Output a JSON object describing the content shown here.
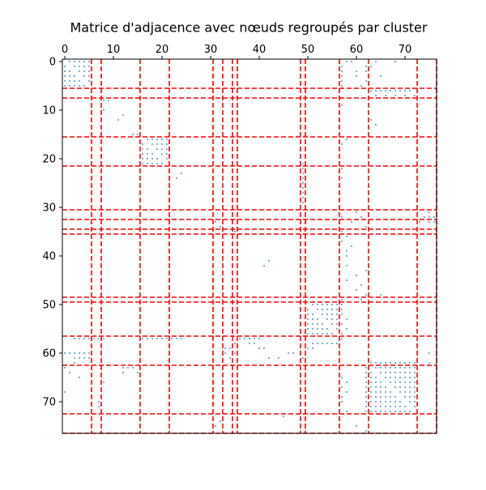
{
  "chart_data": {
    "type": "heatmap",
    "title": "Matrice d'adjacence avec nœuds regroupés par cluster",
    "n_nodes": 77,
    "x_range": [
      -0.5,
      76.5
    ],
    "y_range": [
      -0.5,
      76.5
    ],
    "x_axis_position": "top",
    "y_axis_inverted": true,
    "x_ticks": [
      0,
      10,
      20,
      30,
      40,
      50,
      60,
      70
    ],
    "y_ticks": [
      0,
      10,
      20,
      30,
      40,
      50,
      60,
      70
    ],
    "grid": false,
    "marker_color": "#1f77b4",
    "boundary_color": "#ff0000",
    "boundary_style": "dashed",
    "cluster_boundaries": [
      5.5,
      7.5,
      15.5,
      21.5,
      30.5,
      32.5,
      34.5,
      35.5,
      48.5,
      49.5,
      56.5,
      62.5,
      72.5,
      76.5
    ],
    "dense_blocks": [
      {
        "rows": [
          0,
          5
        ],
        "cols": [
          0,
          5
        ]
      },
      {
        "rows": [
          16,
          21
        ],
        "cols": [
          16,
          21
        ]
      },
      {
        "rows": [
          50,
          56
        ],
        "cols": [
          50,
          56
        ]
      },
      {
        "rows": [
          62,
          72
        ],
        "cols": [
          62,
          72
        ]
      }
    ],
    "edges": [
      [
        0,
        58
      ],
      [
        0,
        59
      ],
      [
        0,
        64
      ],
      [
        0,
        68
      ],
      [
        1,
        57
      ],
      [
        1,
        62
      ],
      [
        1,
        63
      ],
      [
        2,
        57
      ],
      [
        2,
        60
      ],
      [
        2,
        62
      ],
      [
        3,
        57
      ],
      [
        3,
        60
      ],
      [
        3,
        65
      ],
      [
        4,
        57
      ],
      [
        4,
        62
      ],
      [
        5,
        57
      ],
      [
        5,
        61
      ],
      [
        6,
        63
      ],
      [
        6,
        64
      ],
      [
        6,
        65
      ],
      [
        6,
        66
      ],
      [
        6,
        67
      ],
      [
        6,
        68
      ],
      [
        6,
        69
      ],
      [
        6,
        70
      ],
      [
        6,
        71
      ],
      [
        7,
        64
      ],
      [
        7,
        66
      ],
      [
        7,
        68
      ],
      [
        7,
        70
      ],
      [
        7,
        72
      ],
      [
        8,
        8
      ],
      [
        8,
        9
      ],
      [
        9,
        57
      ],
      [
        10,
        8
      ],
      [
        12,
        11
      ],
      [
        11,
        12
      ],
      [
        12,
        63
      ],
      [
        13,
        64
      ],
      [
        15,
        14
      ],
      [
        15,
        15
      ],
      [
        16,
        58
      ],
      [
        17,
        57
      ],
      [
        22,
        57
      ],
      [
        23,
        24
      ],
      [
        24,
        23
      ],
      [
        24,
        57
      ],
      [
        21,
        49
      ],
      [
        22,
        49
      ],
      [
        23,
        49
      ],
      [
        24,
        49
      ],
      [
        25,
        49
      ],
      [
        26,
        49
      ],
      [
        27,
        49
      ],
      [
        28,
        49
      ],
      [
        29,
        49
      ],
      [
        31,
        60
      ],
      [
        32,
        57
      ],
      [
        32,
        61
      ],
      [
        33,
        31
      ],
      [
        33,
        59
      ],
      [
        33,
        73
      ],
      [
        33,
        75
      ],
      [
        34,
        32
      ],
      [
        34,
        62
      ],
      [
        35,
        35
      ],
      [
        35,
        57
      ],
      [
        36,
        58
      ],
      [
        37,
        57
      ],
      [
        38,
        59
      ],
      [
        39,
        58
      ],
      [
        40,
        58
      ],
      [
        41,
        42
      ],
      [
        42,
        41
      ],
      [
        42,
        58
      ],
      [
        43,
        62
      ],
      [
        44,
        60
      ],
      [
        45,
        58
      ],
      [
        46,
        61
      ],
      [
        47,
        60
      ],
      [
        48,
        62
      ],
      [
        48,
        65
      ],
      [
        49,
        57
      ],
      [
        49,
        61
      ],
      [
        50,
        57
      ],
      [
        51,
        57
      ],
      [
        52,
        57
      ],
      [
        53,
        58
      ],
      [
        54,
        57
      ],
      [
        55,
        58
      ],
      [
        56,
        57
      ],
      [
        57,
        57
      ],
      [
        58,
        51
      ],
      [
        58,
        52
      ],
      [
        58,
        53
      ],
      [
        58,
        54
      ],
      [
        58,
        55
      ],
      [
        58,
        56
      ],
      [
        60,
        0
      ],
      [
        60,
        1
      ],
      [
        60,
        2
      ],
      [
        60,
        3
      ],
      [
        60,
        4
      ],
      [
        60,
        5
      ],
      [
        61,
        2
      ],
      [
        61,
        3
      ],
      [
        61,
        4
      ],
      [
        61,
        5
      ],
      [
        62,
        2
      ],
      [
        63,
        0
      ],
      [
        64,
        1
      ],
      [
        65,
        3
      ],
      [
        66,
        8
      ],
      [
        68,
        0
      ],
      [
        70,
        7
      ],
      [
        71,
        7
      ],
      [
        57,
        2
      ],
      [
        57,
        3
      ],
      [
        57,
        4
      ],
      [
        57,
        5
      ],
      [
        57,
        6
      ],
      [
        57,
        7
      ],
      [
        57,
        8
      ],
      [
        57,
        16
      ],
      [
        57,
        17
      ],
      [
        57,
        18
      ],
      [
        57,
        19
      ],
      [
        57,
        20
      ],
      [
        57,
        21
      ],
      [
        57,
        22
      ],
      [
        57,
        23
      ],
      [
        57,
        24
      ],
      [
        57,
        36
      ],
      [
        57,
        37
      ],
      [
        57,
        38
      ],
      [
        57,
        39
      ],
      [
        57,
        40
      ],
      [
        58,
        35
      ],
      [
        58,
        38
      ],
      [
        58,
        39
      ],
      [
        59,
        33
      ],
      [
        59,
        40
      ],
      [
        59,
        41
      ],
      [
        61,
        42
      ],
      [
        61,
        44
      ],
      [
        60,
        46
      ],
      [
        60,
        47
      ],
      [
        61,
        49
      ],
      [
        59,
        50
      ],
      [
        59,
        51
      ],
      [
        63,
        12
      ],
      [
        63,
        13
      ],
      [
        63,
        14
      ],
      [
        64,
        12
      ],
      [
        64,
        15
      ],
      [
        59,
        34
      ],
      [
        60,
        33
      ],
      [
        60,
        35
      ],
      [
        61,
        34
      ],
      [
        65,
        57
      ],
      [
        66,
        58
      ],
      [
        67,
        57
      ],
      [
        68,
        58
      ],
      [
        69,
        57
      ],
      [
        70,
        57
      ],
      [
        72,
        58
      ],
      [
        73,
        45
      ],
      [
        74,
        32
      ],
      [
        75,
        31
      ],
      [
        75,
        60
      ],
      [
        76,
        62
      ],
      [
        63,
        62
      ],
      [
        62,
        75
      ],
      [
        60,
        75
      ],
      [
        32,
        74
      ],
      [
        32,
        75
      ],
      [
        32,
        76
      ],
      [
        31,
        75
      ],
      [
        33,
        76
      ]
    ]
  }
}
